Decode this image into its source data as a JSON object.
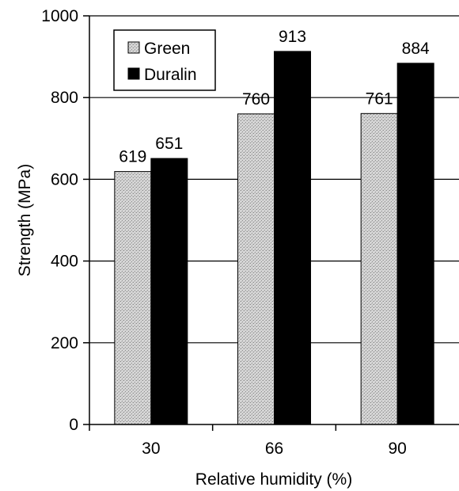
{
  "chart_data": {
    "type": "bar",
    "title": "",
    "xlabel": "Relative humidity (%)",
    "ylabel": "Strength (MPa)",
    "categories": [
      "30",
      "66",
      "90"
    ],
    "series": [
      {
        "name": "Green",
        "values": [
          619,
          760,
          761
        ],
        "color": "#c8c8c8",
        "pattern": "stippled-gray"
      },
      {
        "name": "Duralin",
        "values": [
          651,
          913,
          884
        ],
        "color": "#000000"
      }
    ],
    "data_labels": {
      "Green": [
        "619",
        "760",
        "761"
      ],
      "Duralin": [
        "651",
        "913",
        "884"
      ]
    },
    "yticks": [
      "0",
      "200",
      "400",
      "600",
      "800",
      "1000"
    ],
    "ylim": [
      0,
      1000
    ],
    "grid": "horizontal",
    "legend": "top-left"
  }
}
